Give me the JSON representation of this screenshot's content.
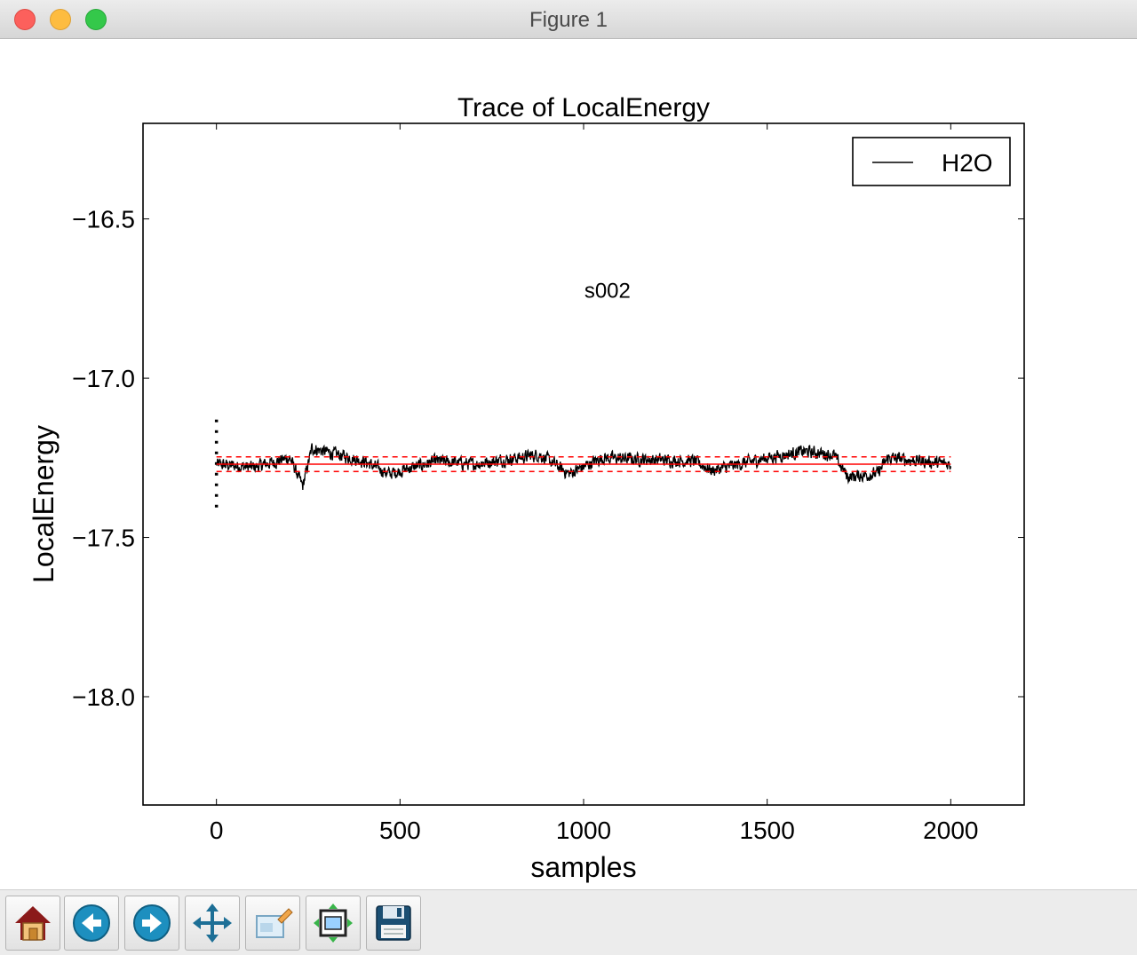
{
  "window": {
    "title": "Figure 1"
  },
  "toolbar": {
    "buttons": [
      {
        "name": "home-button",
        "icon": "home-icon"
      },
      {
        "name": "back-button",
        "icon": "arrow-left-icon"
      },
      {
        "name": "forward-button",
        "icon": "arrow-right-icon"
      },
      {
        "name": "pan-button",
        "icon": "move-icon"
      },
      {
        "name": "zoom-button",
        "icon": "zoom-rect-icon"
      },
      {
        "name": "configure-subplots-button",
        "icon": "subplots-icon"
      },
      {
        "name": "save-button",
        "icon": "floppy-icon"
      }
    ]
  },
  "chart_data": {
    "type": "line",
    "title": "Trace of LocalEnergy",
    "xlabel": "samples",
    "ylabel": "LocalEnergy",
    "annotation": "s002",
    "xlim": [
      -200,
      2200
    ],
    "ylim": [
      -18.34,
      -16.2
    ],
    "xticks": [
      0,
      500,
      1000,
      1500,
      2000
    ],
    "xtick_labels": [
      "0",
      "500",
      "1000",
      "1500",
      "2000"
    ],
    "yticks": [
      -16.5,
      -17.0,
      -17.5,
      -18.0
    ],
    "ytick_labels": [
      "−16.5",
      "−17.0",
      "−17.5",
      "−18.0"
    ],
    "grid": false,
    "legend": {
      "position": "top-right",
      "entries": [
        "H2O"
      ]
    },
    "series": [
      {
        "name": "H2O",
        "color": "#000000",
        "x_range": [
          0,
          2000
        ],
        "n_points": 2000,
        "mean": -17.27,
        "noise_amplitude": 0.03,
        "trace_profile": [
          {
            "x": 0,
            "y": -17.27
          },
          {
            "x": 100,
            "y": -17.28
          },
          {
            "x": 200,
            "y": -17.25
          },
          {
            "x": 235,
            "y": -17.34
          },
          {
            "x": 260,
            "y": -17.22
          },
          {
            "x": 400,
            "y": -17.26
          },
          {
            "x": 470,
            "y": -17.3
          },
          {
            "x": 600,
            "y": -17.26
          },
          {
            "x": 700,
            "y": -17.27
          },
          {
            "x": 880,
            "y": -17.24
          },
          {
            "x": 960,
            "y": -17.3
          },
          {
            "x": 1050,
            "y": -17.25
          },
          {
            "x": 1300,
            "y": -17.26
          },
          {
            "x": 1350,
            "y": -17.29
          },
          {
            "x": 1500,
            "y": -17.25
          },
          {
            "x": 1600,
            "y": -17.23
          },
          {
            "x": 1680,
            "y": -17.24
          },
          {
            "x": 1720,
            "y": -17.31
          },
          {
            "x": 1800,
            "y": -17.3
          },
          {
            "x": 1830,
            "y": -17.25
          },
          {
            "x": 2000,
            "y": -17.27
          }
        ]
      }
    ],
    "reference_lines": {
      "color": "#ff0000",
      "mean": -17.27,
      "error_band": [
        -17.247,
        -17.293
      ],
      "x_range": [
        0,
        2000
      ]
    },
    "dotted_marker": {
      "x": 0,
      "y_range": [
        -17.13,
        -17.42
      ],
      "color": "#000000"
    }
  }
}
